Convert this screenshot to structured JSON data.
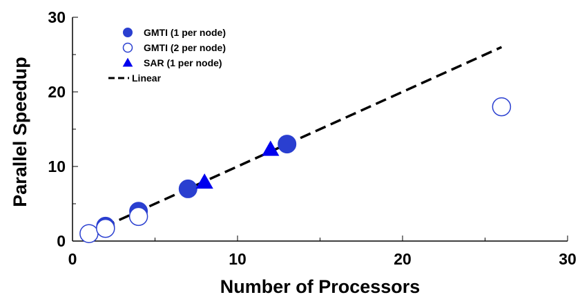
{
  "chart_data": {
    "type": "scatter",
    "xlabel": "Number of Processors",
    "ylabel": "Parallel Speedup",
    "xlim": [
      0,
      30
    ],
    "ylim": [
      0,
      30
    ],
    "xticks": [
      "0",
      "10",
      "20",
      "30"
    ],
    "yticks": [
      "0",
      "10",
      "20",
      "30"
    ],
    "grid": false,
    "legend_position": "top-left",
    "series": [
      {
        "name": "GMTI (1 per node)",
        "marker": "filled-circle",
        "color": "#2a3fd0",
        "points": [
          [
            2,
            2
          ],
          [
            4,
            4
          ],
          [
            7,
            7
          ],
          [
            13,
            13
          ]
        ]
      },
      {
        "name": "GMTI (2 per node)",
        "marker": "open-circle",
        "color": "#2a3fd0",
        "points": [
          [
            1,
            1
          ],
          [
            2,
            1.7
          ],
          [
            4,
            3.3
          ],
          [
            26,
            18
          ]
        ]
      },
      {
        "name": "SAR (1 per node)",
        "marker": "filled-triangle",
        "color": "#0000ee",
        "points": [
          [
            8,
            7.9
          ],
          [
            12,
            12.3
          ]
        ]
      },
      {
        "name": "Linear",
        "marker": "dashed-line",
        "color": "#000000",
        "points": [
          [
            1,
            1
          ],
          [
            26,
            26
          ]
        ]
      }
    ]
  }
}
